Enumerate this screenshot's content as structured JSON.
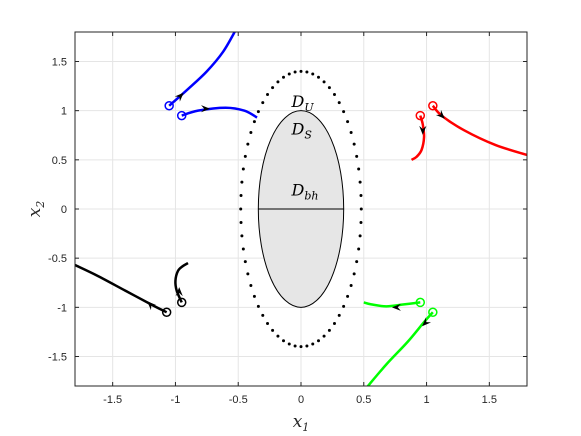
{
  "chart_data": {
    "type": "line",
    "xlabel": "x",
    "xlabel_sub": "1",
    "ylabel": "x",
    "ylabel_sub": "2",
    "xlim": [
      -1.8,
      1.8
    ],
    "ylim": [
      -1.8,
      1.8
    ],
    "grid": true,
    "x_ticks": [
      -1.5,
      -1,
      -0.5,
      0,
      0.5,
      1,
      1.5
    ],
    "y_ticks": [
      -1.5,
      -1,
      -0.5,
      0,
      0.5,
      1,
      1.5
    ],
    "x_tick_labels": [
      "-1.5",
      "-1",
      "-0.5",
      "0",
      "0.5",
      "1",
      "1.5"
    ],
    "y_tick_labels": [
      "-1.5",
      "-1",
      "-0.5",
      "0",
      "0.5",
      "1",
      "1.5"
    ],
    "regions": {
      "D_bh": {
        "label": "D",
        "sub": "bh",
        "center": [
          0,
          0
        ],
        "rx": 0.34,
        "ry": 1.0,
        "fill": "#e6e6e6",
        "label_at": [
          0.02,
          0.2
        ]
      },
      "D_S": {
        "label": "D",
        "sub": "S",
        "label_at": [
          0.02,
          0.82
        ]
      },
      "D_U": {
        "label": "D",
        "sub": "U",
        "label_at": [
          0.02,
          1.1
        ]
      }
    },
    "dotted_ellipse": {
      "center": [
        0,
        0
      ],
      "rx": 0.48,
      "ry": 1.4,
      "points": 64
    },
    "horizontal_line": {
      "y": 0,
      "x_from": -0.34,
      "x_to": 0.34
    },
    "series": [
      {
        "color": "#0000ff",
        "points": [
          [
            -0.95,
            0.95
          ],
          [
            -0.82,
            1.0
          ],
          [
            -0.6,
            1.03
          ],
          [
            -0.45,
            1.0
          ],
          [
            -0.35,
            0.93
          ]
        ],
        "start_marker": [
          -0.95,
          0.95
        ],
        "arrows": [
          [
            -0.76,
            1.02,
            1,
            0
          ]
        ]
      },
      {
        "color": "#0000ff",
        "points": [
          [
            -1.05,
            1.05
          ],
          [
            -0.9,
            1.22
          ],
          [
            -0.75,
            1.4
          ],
          [
            -0.62,
            1.6
          ],
          [
            -0.52,
            1.82
          ]
        ],
        "start_marker": [
          -1.05,
          1.05
        ],
        "arrows": [
          [
            -0.96,
            1.15,
            1,
            1
          ]
        ]
      },
      {
        "color": "#ff0000",
        "points": [
          [
            0.95,
            0.95
          ],
          [
            0.97,
            0.86
          ],
          [
            0.98,
            0.73
          ],
          [
            0.96,
            0.6
          ],
          [
            0.92,
            0.53
          ],
          [
            0.88,
            0.5
          ]
        ],
        "start_marker": [
          0.95,
          0.95
        ],
        "arrows": [
          [
            0.97,
            0.8,
            0,
            -1
          ]
        ]
      },
      {
        "color": "#ff0000",
        "points": [
          [
            1.05,
            1.05
          ],
          [
            1.12,
            0.95
          ],
          [
            1.3,
            0.8
          ],
          [
            1.55,
            0.65
          ],
          [
            1.8,
            0.55
          ]
        ],
        "start_marker": [
          1.05,
          1.05
        ],
        "arrows": [
          [
            1.12,
            0.95,
            1,
            -1
          ]
        ]
      },
      {
        "color": "#000000",
        "points": [
          [
            -0.95,
            -0.95
          ],
          [
            -0.99,
            -0.83
          ],
          [
            -1.0,
            -0.73
          ],
          [
            -0.98,
            -0.63
          ],
          [
            -0.94,
            -0.58
          ],
          [
            -0.9,
            -0.55
          ]
        ],
        "start_marker": [
          -0.95,
          -0.95
        ],
        "arrows": [
          [
            -0.97,
            -0.84,
            0,
            1
          ]
        ]
      },
      {
        "color": "#000000",
        "points": [
          [
            -1.07,
            -1.05
          ],
          [
            -1.18,
            -0.98
          ],
          [
            -1.4,
            -0.83
          ],
          [
            -1.62,
            -0.68
          ],
          [
            -1.8,
            -0.57
          ]
        ],
        "start_marker": [
          -1.07,
          -1.05
        ],
        "arrows": [
          [
            -1.2,
            -0.97,
            -1,
            1
          ]
        ]
      },
      {
        "color": "#00ff00",
        "points": [
          [
            0.95,
            -0.95
          ],
          [
            0.82,
            -0.97
          ],
          [
            0.68,
            -0.99
          ],
          [
            0.56,
            -0.97
          ],
          [
            0.5,
            -0.95
          ]
        ],
        "start_marker": [
          0.95,
          -0.95
        ],
        "arrows": [
          [
            0.76,
            -1.0,
            -1,
            0
          ]
        ]
      },
      {
        "color": "#00ff00",
        "points": [
          [
            1.05,
            -1.05
          ],
          [
            0.98,
            -1.15
          ],
          [
            0.85,
            -1.35
          ],
          [
            0.68,
            -1.58
          ],
          [
            0.52,
            -1.82
          ]
        ],
        "start_marker": [
          1.05,
          -1.05
        ],
        "arrows": [
          [
            0.99,
            -1.16,
            -1,
            -1
          ]
        ]
      }
    ]
  }
}
